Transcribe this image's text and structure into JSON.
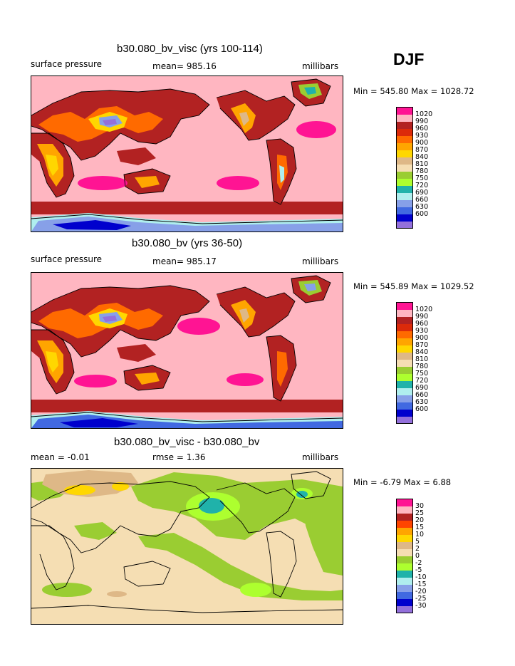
{
  "season": "DJF",
  "panels": [
    {
      "title": "b30.080_bv_visc (yrs 100-114)",
      "left_label": "surface pressure",
      "center_label": "mean= 985.16",
      "units": "millibars",
      "minmax": "Min = 545.80 Max = 1028.72",
      "legend_labels": [
        "1020",
        "990",
        "960",
        "930",
        "900",
        "870",
        "840",
        "810",
        "780",
        "750",
        "720",
        "690",
        "660",
        "630",
        "600"
      ]
    },
    {
      "title": "b30.080_bv (yrs 36-50)",
      "left_label": "surface pressure",
      "center_label": "mean= 985.17",
      "units": "millibars",
      "minmax": "Min = 545.89 Max = 1029.52",
      "legend_labels": [
        "1020",
        "990",
        "960",
        "930",
        "900",
        "870",
        "840",
        "810",
        "780",
        "750",
        "720",
        "690",
        "660",
        "630",
        "600"
      ]
    },
    {
      "title": "b30.080_bv_visc - b30.080_bv",
      "left_label": "mean =  -0.01",
      "center_label": "rmse =    1.36",
      "units": "millibars",
      "minmax": "Min =  -6.79 Max =    6.88",
      "legend_labels": [
        "30",
        "25",
        "20",
        "15",
        "10",
        "5",
        "2",
        "0",
        "-2",
        "-5",
        "-10",
        "-15",
        "-20",
        "-25",
        "-30"
      ]
    }
  ],
  "colors": {
    "abs_scale": [
      "#ff1493",
      "#ffb6c1",
      "#b22222",
      "#dc2a0a",
      "#ff6a00",
      "#ffa500",
      "#ffd700",
      "#deb887",
      "#f5deb3",
      "#9acd32",
      "#adff2f",
      "#20b2aa",
      "#afeeee",
      "#87a0e8",
      "#4169e1",
      "#0000cd",
      "#9370db"
    ],
    "diff_scale": [
      "#ff1493",
      "#ffb6c1",
      "#b22222",
      "#ff4500",
      "#ffa500",
      "#ffd700",
      "#deb887",
      "#f5deb3",
      "#9acd32",
      "#adff2f",
      "#20b2aa",
      "#afeeee",
      "#87a0e8",
      "#4169e1",
      "#0000cd",
      "#9370db"
    ]
  }
}
